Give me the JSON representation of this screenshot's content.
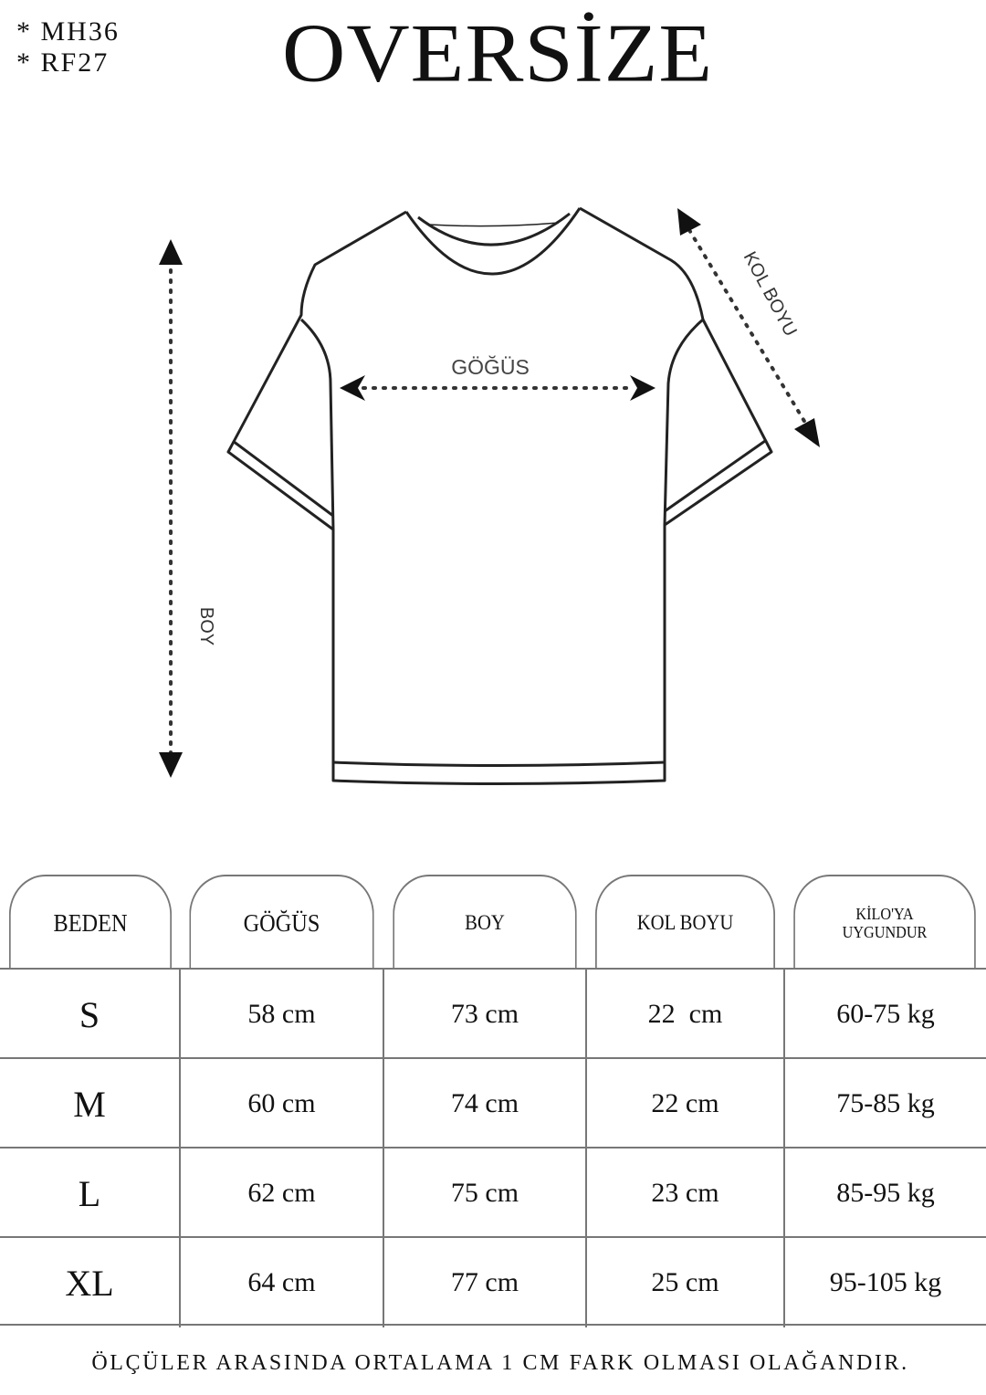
{
  "codes": [
    "* MH36",
    "* RF27"
  ],
  "title": "OVERSİZE",
  "diagram": {
    "chest_label": "GÖĞÜS",
    "length_label": "BOY",
    "sleeve_label": "KOL BOYU"
  },
  "table": {
    "headers": [
      "BEDEN",
      "GÖĞÜS",
      "BOY",
      "KOL BOYU",
      "KİLO'YA UYGUNDUR"
    ],
    "rows": [
      [
        "S",
        "58 cm",
        "73 cm",
        "22  cm",
        "60-75 kg"
      ],
      [
        "M",
        "60 cm",
        "74 cm",
        "22 cm",
        "75-85 kg"
      ],
      [
        "L",
        "62 cm",
        "75 cm",
        "23 cm",
        "85-95 kg"
      ],
      [
        "XL",
        "64 cm",
        "77 cm",
        "25 cm",
        "95-105 kg"
      ]
    ]
  },
  "footer": "ÖLÇÜLER ARASINDA ORTALAMA 1 CM FARK OLMASI OLAĞANDIR."
}
